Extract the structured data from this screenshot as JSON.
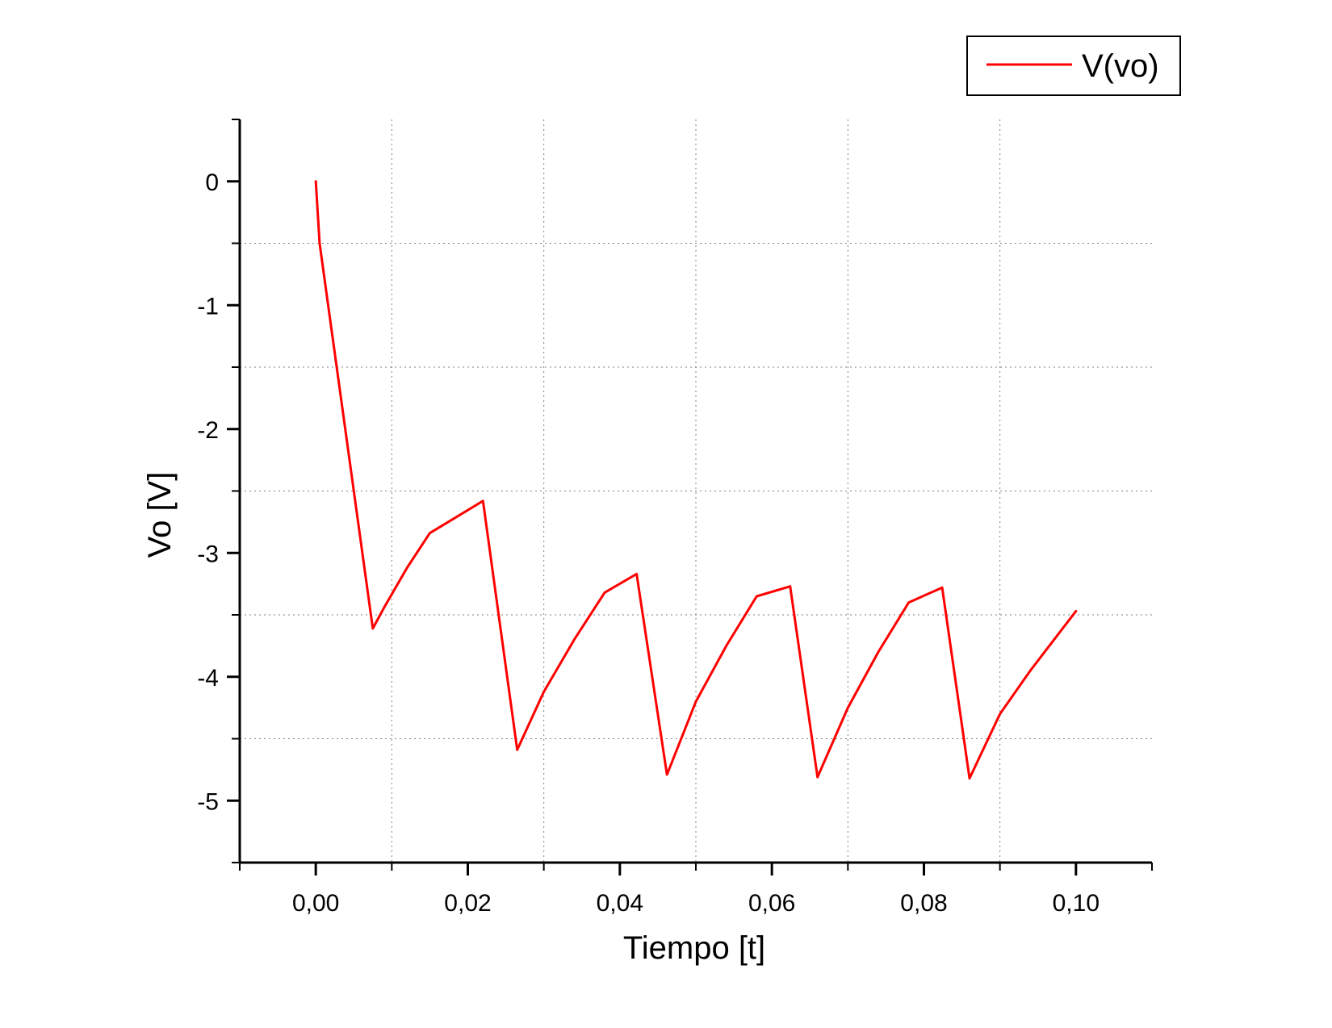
{
  "chart_data": {
    "type": "line",
    "title": "",
    "xlabel": "Tiempo [t]",
    "ylabel": "Vo [V]",
    "xlim": [
      -0.01,
      0.11
    ],
    "ylim": [
      -5.5,
      0.5
    ],
    "xticks": [
      0.0,
      0.02,
      0.04,
      0.06,
      0.08,
      0.1
    ],
    "xtick_labels": [
      "0,00",
      "0,02",
      "0,04",
      "0,06",
      "0,08",
      "0,10"
    ],
    "xminor_ticks": [
      -0.01,
      0.01,
      0.03,
      0.05,
      0.07,
      0.09,
      0.11
    ],
    "yticks": [
      0,
      -1,
      -2,
      -3,
      -4,
      -5
    ],
    "ytick_labels": [
      "0",
      "-1",
      "-2",
      "-3",
      "-4",
      "-5"
    ],
    "yminor_ticks": [
      0.5,
      -0.5,
      -1.5,
      -2.5,
      -3.5,
      -4.5,
      -5.5
    ],
    "grid": "dotted",
    "legend_position": "top-right",
    "colors": {
      "series": "#ff0000",
      "axis": "#000000",
      "grid": "#808080"
    },
    "series": [
      {
        "name": "V(vo)",
        "color": "#ff0000",
        "x": [
          0.0,
          0.0005,
          0.0075,
          0.009,
          0.012,
          0.015,
          0.022,
          0.0265,
          0.03,
          0.034,
          0.038,
          0.0422,
          0.0462,
          0.05,
          0.054,
          0.058,
          0.0624,
          0.066,
          0.07,
          0.074,
          0.078,
          0.0824,
          0.086,
          0.09,
          0.094,
          0.1
        ],
        "y": [
          0.0,
          -0.5,
          -3.61,
          -3.44,
          -3.12,
          -2.84,
          -2.58,
          -4.59,
          -4.12,
          -3.7,
          -3.32,
          -3.17,
          -4.79,
          -4.2,
          -3.75,
          -3.35,
          -3.27,
          -4.81,
          -4.25,
          -3.8,
          -3.4,
          -3.28,
          -4.82,
          -4.3,
          -3.95,
          -3.47
        ]
      }
    ]
  }
}
